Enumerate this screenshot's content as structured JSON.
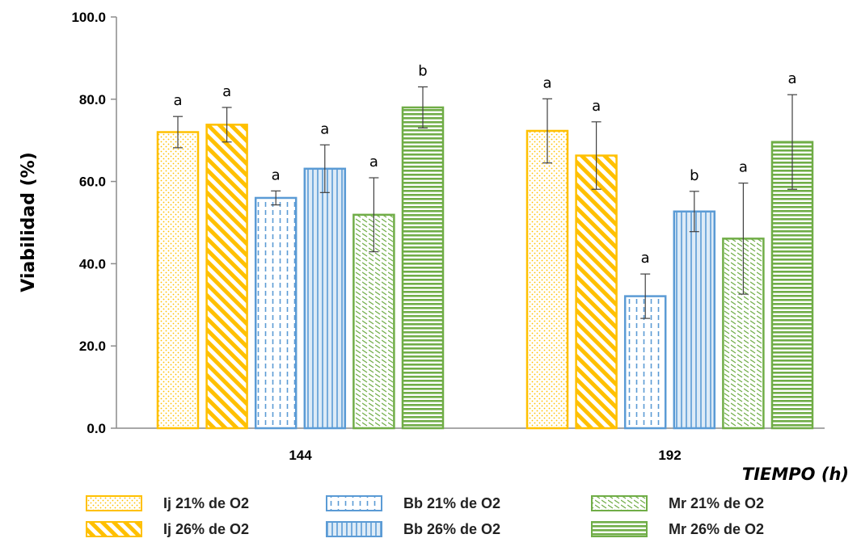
{
  "chart_data": {
    "type": "bar",
    "categories": [
      "144",
      "192"
    ],
    "xlabel": "TIEMPO (h)",
    "ylabel": "Viabilidad (%)",
    "ylim": [
      0,
      100
    ],
    "yticks": [
      "0.0",
      "20.0",
      "40.0",
      "60.0",
      "80.0",
      "100.0"
    ],
    "grid": false,
    "legend_position": "bottom",
    "series": [
      {
        "name": "Ij 21% de O2",
        "values": [
          72.0,
          72.3
        ],
        "errors": [
          3.8,
          7.8
        ],
        "letters": [
          "a",
          "a"
        ],
        "color": "#FFC000",
        "pattern": "dots"
      },
      {
        "name": "Ij 26% de O2",
        "values": [
          73.8,
          66.3
        ],
        "errors": [
          4.2,
          8.2
        ],
        "letters": [
          "a",
          "a"
        ],
        "color": "#FFC000",
        "pattern": "diagonal"
      },
      {
        "name": "Bb 21% de O2",
        "values": [
          56.0,
          32.1
        ],
        "errors": [
          1.7,
          5.4
        ],
        "letters": [
          "a",
          "a"
        ],
        "color": "#5B9BD5",
        "pattern": "dashed-vertical"
      },
      {
        "name": "Bb 26% de O2",
        "values": [
          63.1,
          52.7
        ],
        "errors": [
          5.8,
          4.9
        ],
        "letters": [
          "a",
          "b"
        ],
        "color": "#5B9BD5",
        "pattern": "vertical"
      },
      {
        "name": "Mr 21% de O2",
        "values": [
          51.9,
          46.1
        ],
        "errors": [
          9.0,
          13.5
        ],
        "letters": [
          "a",
          "a"
        ],
        "color": "#70AD47",
        "pattern": "dashes-diag"
      },
      {
        "name": "Mr 26% de O2",
        "values": [
          78.0,
          69.6
        ],
        "errors": [
          5.0,
          11.5
        ],
        "letters": [
          "b",
          "a"
        ],
        "color": "#70AD47",
        "pattern": "horizontal"
      }
    ]
  }
}
